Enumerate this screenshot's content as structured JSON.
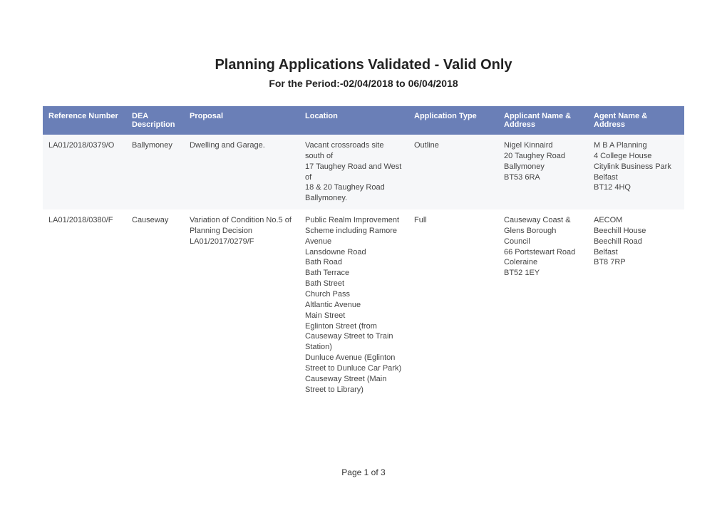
{
  "header": {
    "title": "Planning Applications Validated - Valid Only",
    "subtitle": "For the Period:-02/04/2018 to 06/04/2018"
  },
  "table": {
    "header_bg": "#6a7fb7",
    "header_color": "#ffffff",
    "row_alt_bg": "#f6f7f9",
    "columns": [
      {
        "label": "Reference Number",
        "width": "13%"
      },
      {
        "label": "DEA\nDescription",
        "width": "9%"
      },
      {
        "label": "Proposal",
        "width": "18%"
      },
      {
        "label": "Location",
        "width": "17%"
      },
      {
        "label": "Application Type",
        "width": "14%"
      },
      {
        "label": "Applicant Name & Address",
        "width": "14%"
      },
      {
        "label": "Agent Name & Address",
        "width": "15%"
      }
    ],
    "rows": [
      {
        "ref": "LA01/2018/0379/O",
        "dea": "Ballymoney",
        "proposal": "Dwelling and Garage.",
        "location": "Vacant crossroads site south of\n17 Taughey Road and West of\n18 & 20 Taughey Road Ballymoney.",
        "app_type": "Outline",
        "applicant": "Nigel Kinnaird\n20 Taughey Road\nBallymoney\nBT53 6RA",
        "agent": "M B A Planning\n4 College House\nCitylink Business Park\nBelfast\nBT12 4HQ"
      },
      {
        "ref": "LA01/2018/0380/F",
        "dea": "Causeway",
        "proposal": "Variation of Condition No.5 of\nPlanning Decision LA01/2017/0279/F",
        "location": "Public Realm Improvement Scheme including Ramore Avenue\nLansdowne Road\nBath Road\nBath Terrace\nBath Street\nChurch Pass\nAltlantic Avenue\nMain Street\nEglinton Street (from Causeway Street to Train Station)\nDunluce Avenue (Eglinton Street to Dunluce Car Park)\nCauseway Street (Main Street to Library)",
        "app_type": "Full",
        "applicant": "Causeway Coast & Glens Borough Council\n66 Portstewart Road\nColeraine\nBT52 1EY",
        "agent": "AECOM\nBeechill House\nBeechill Road\nBelfast\nBT8 7RP"
      }
    ]
  },
  "footer": {
    "page_label": "Page 1 of 3"
  }
}
